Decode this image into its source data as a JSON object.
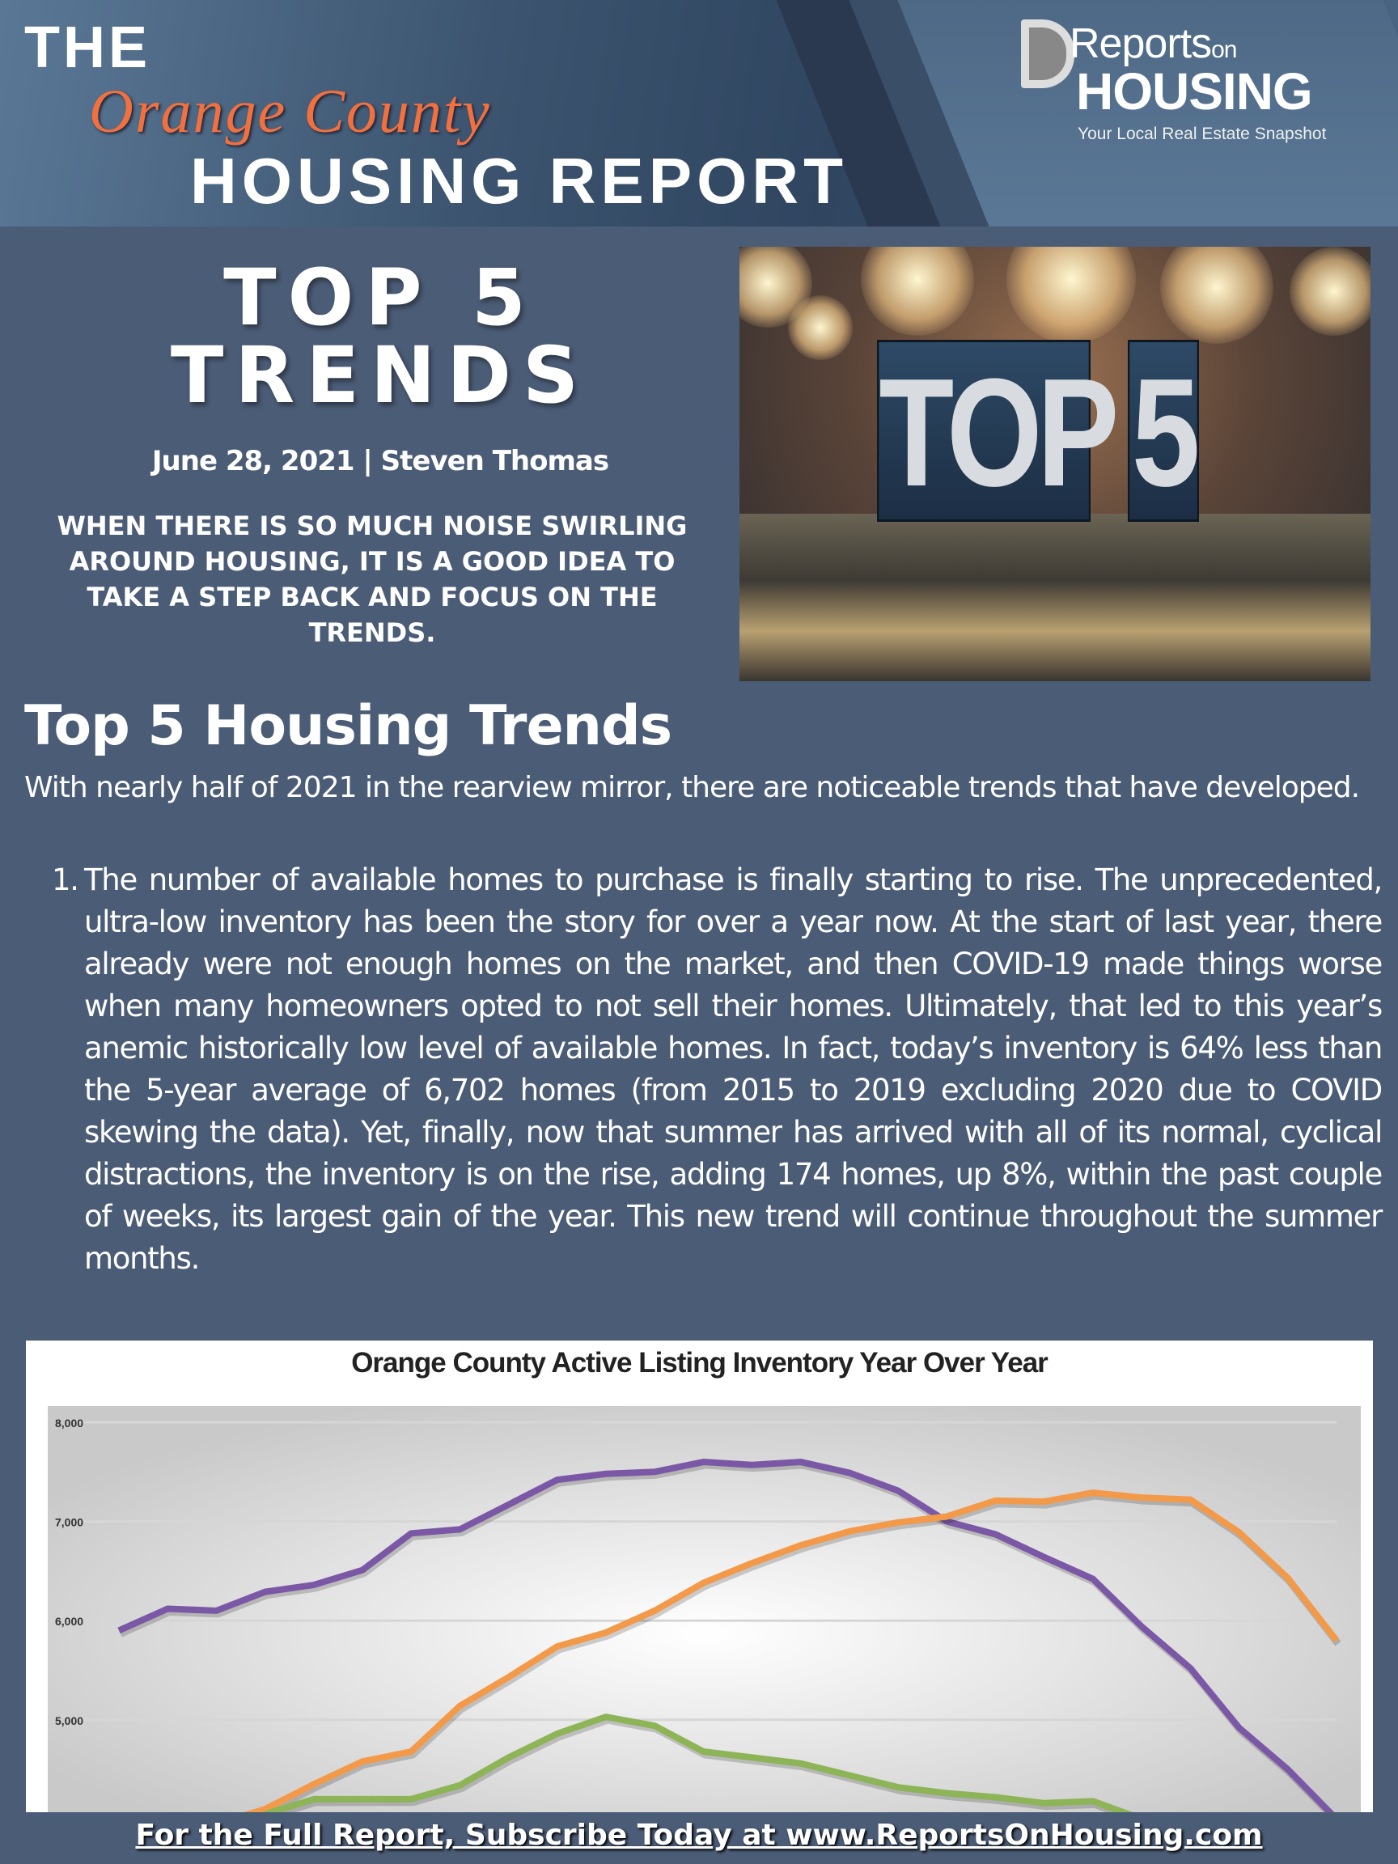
{
  "header": {
    "the": "THE",
    "orange_county": "Orange County",
    "housing_report": "HOUSING REPORT",
    "logo": {
      "reports": "Reports",
      "on": "on",
      "housing": "HOUSING",
      "tagline": "Your Local Real Estate Snapshot"
    }
  },
  "hero": {
    "title_line1": "TOP 5",
    "title_line2": "TRENDS",
    "byline": "June 28, 2021 | Steven Thomas",
    "tagline": "WHEN THERE IS SO MUCH NOISE SWIRLING AROUND HOUSING, IT IS A GOOD IDEA TO TAKE A STEP BACK AND FOCUS ON THE TRENDS.",
    "photo_text": {
      "top": "TOP",
      "five": "5"
    }
  },
  "article": {
    "heading": "Top 5 Housing Trends",
    "intro": "With nearly half of 2021 in the rearview mirror, there are noticeable trends that have developed.",
    "items": [
      {
        "number": "1.",
        "text": "The number of available homes to purchase is finally starting to rise. The unprecedented, ultra-low inventory has been the story for over a year now. At the start of last year, there already were not enough homes on the market, and then COVID-19 made things worse when many homeowners opted to not sell their homes. Ultimately, that led to this year’s anemic historically low level of available homes. In fact, today’s inventory is 64% less than the 5-year average of 6,702 homes (from 2015 to 2019 excluding 2020 due to COVID skewing the data). Yet, finally, now that summer has arrived with all of its normal, cyclical distractions, the inventory is on the rise, adding 174 homes, up 8%, within the past couple of weeks, its largest gain of the year. This new trend will continue throughout the summer months."
      }
    ]
  },
  "chart_data": {
    "type": "line",
    "title": "Orange County Active Listing Inventory Year Over Year",
    "xlabel": "",
    "ylabel": "",
    "ylim": [
      4070,
      8150
    ],
    "yticks": [
      "8,000",
      "7,000",
      "6,000",
      "5,000"
    ],
    "ytick_values": [
      8000,
      7000,
      6000,
      5000
    ],
    "grid": true,
    "x": [
      0,
      1,
      2,
      3,
      4,
      5,
      6,
      7,
      8,
      9,
      10,
      11,
      12,
      13,
      14,
      15,
      16,
      17,
      18,
      19,
      20,
      21,
      22,
      23,
      24,
      25
    ],
    "series": [
      {
        "name": "purple",
        "color": "#7b58a6",
        "values": [
          5900,
          6120,
          6100,
          6290,
          6360,
          6510,
          6880,
          6920,
          7170,
          7420,
          7480,
          7500,
          7600,
          7570,
          7600,
          7490,
          7310,
          7000,
          6870,
          6640,
          6420,
          5940,
          5520,
          4920,
          4500,
          4000
        ]
      },
      {
        "name": "orange",
        "color": "#f39a4a",
        "values": [
          null,
          null,
          3950,
          4100,
          4350,
          4580,
          4680,
          5140,
          5430,
          5740,
          5880,
          6100,
          6380,
          6580,
          6760,
          6900,
          6990,
          7050,
          7210,
          7200,
          7290,
          7240,
          7220,
          6890,
          6430,
          5800
        ]
      },
      {
        "name": "green",
        "color": "#8db456",
        "values": [
          null,
          null,
          null,
          4050,
          4200,
          4200,
          4200,
          4340,
          4620,
          4860,
          5030,
          4940,
          4680,
          4620,
          4560,
          4440,
          4320,
          4260,
          4220,
          4160,
          4180,
          4000,
          null,
          null,
          null,
          null
        ]
      }
    ]
  },
  "footer": {
    "cta": "For the Full Report, Subscribe Today at www.ReportsOnHousing.com"
  }
}
